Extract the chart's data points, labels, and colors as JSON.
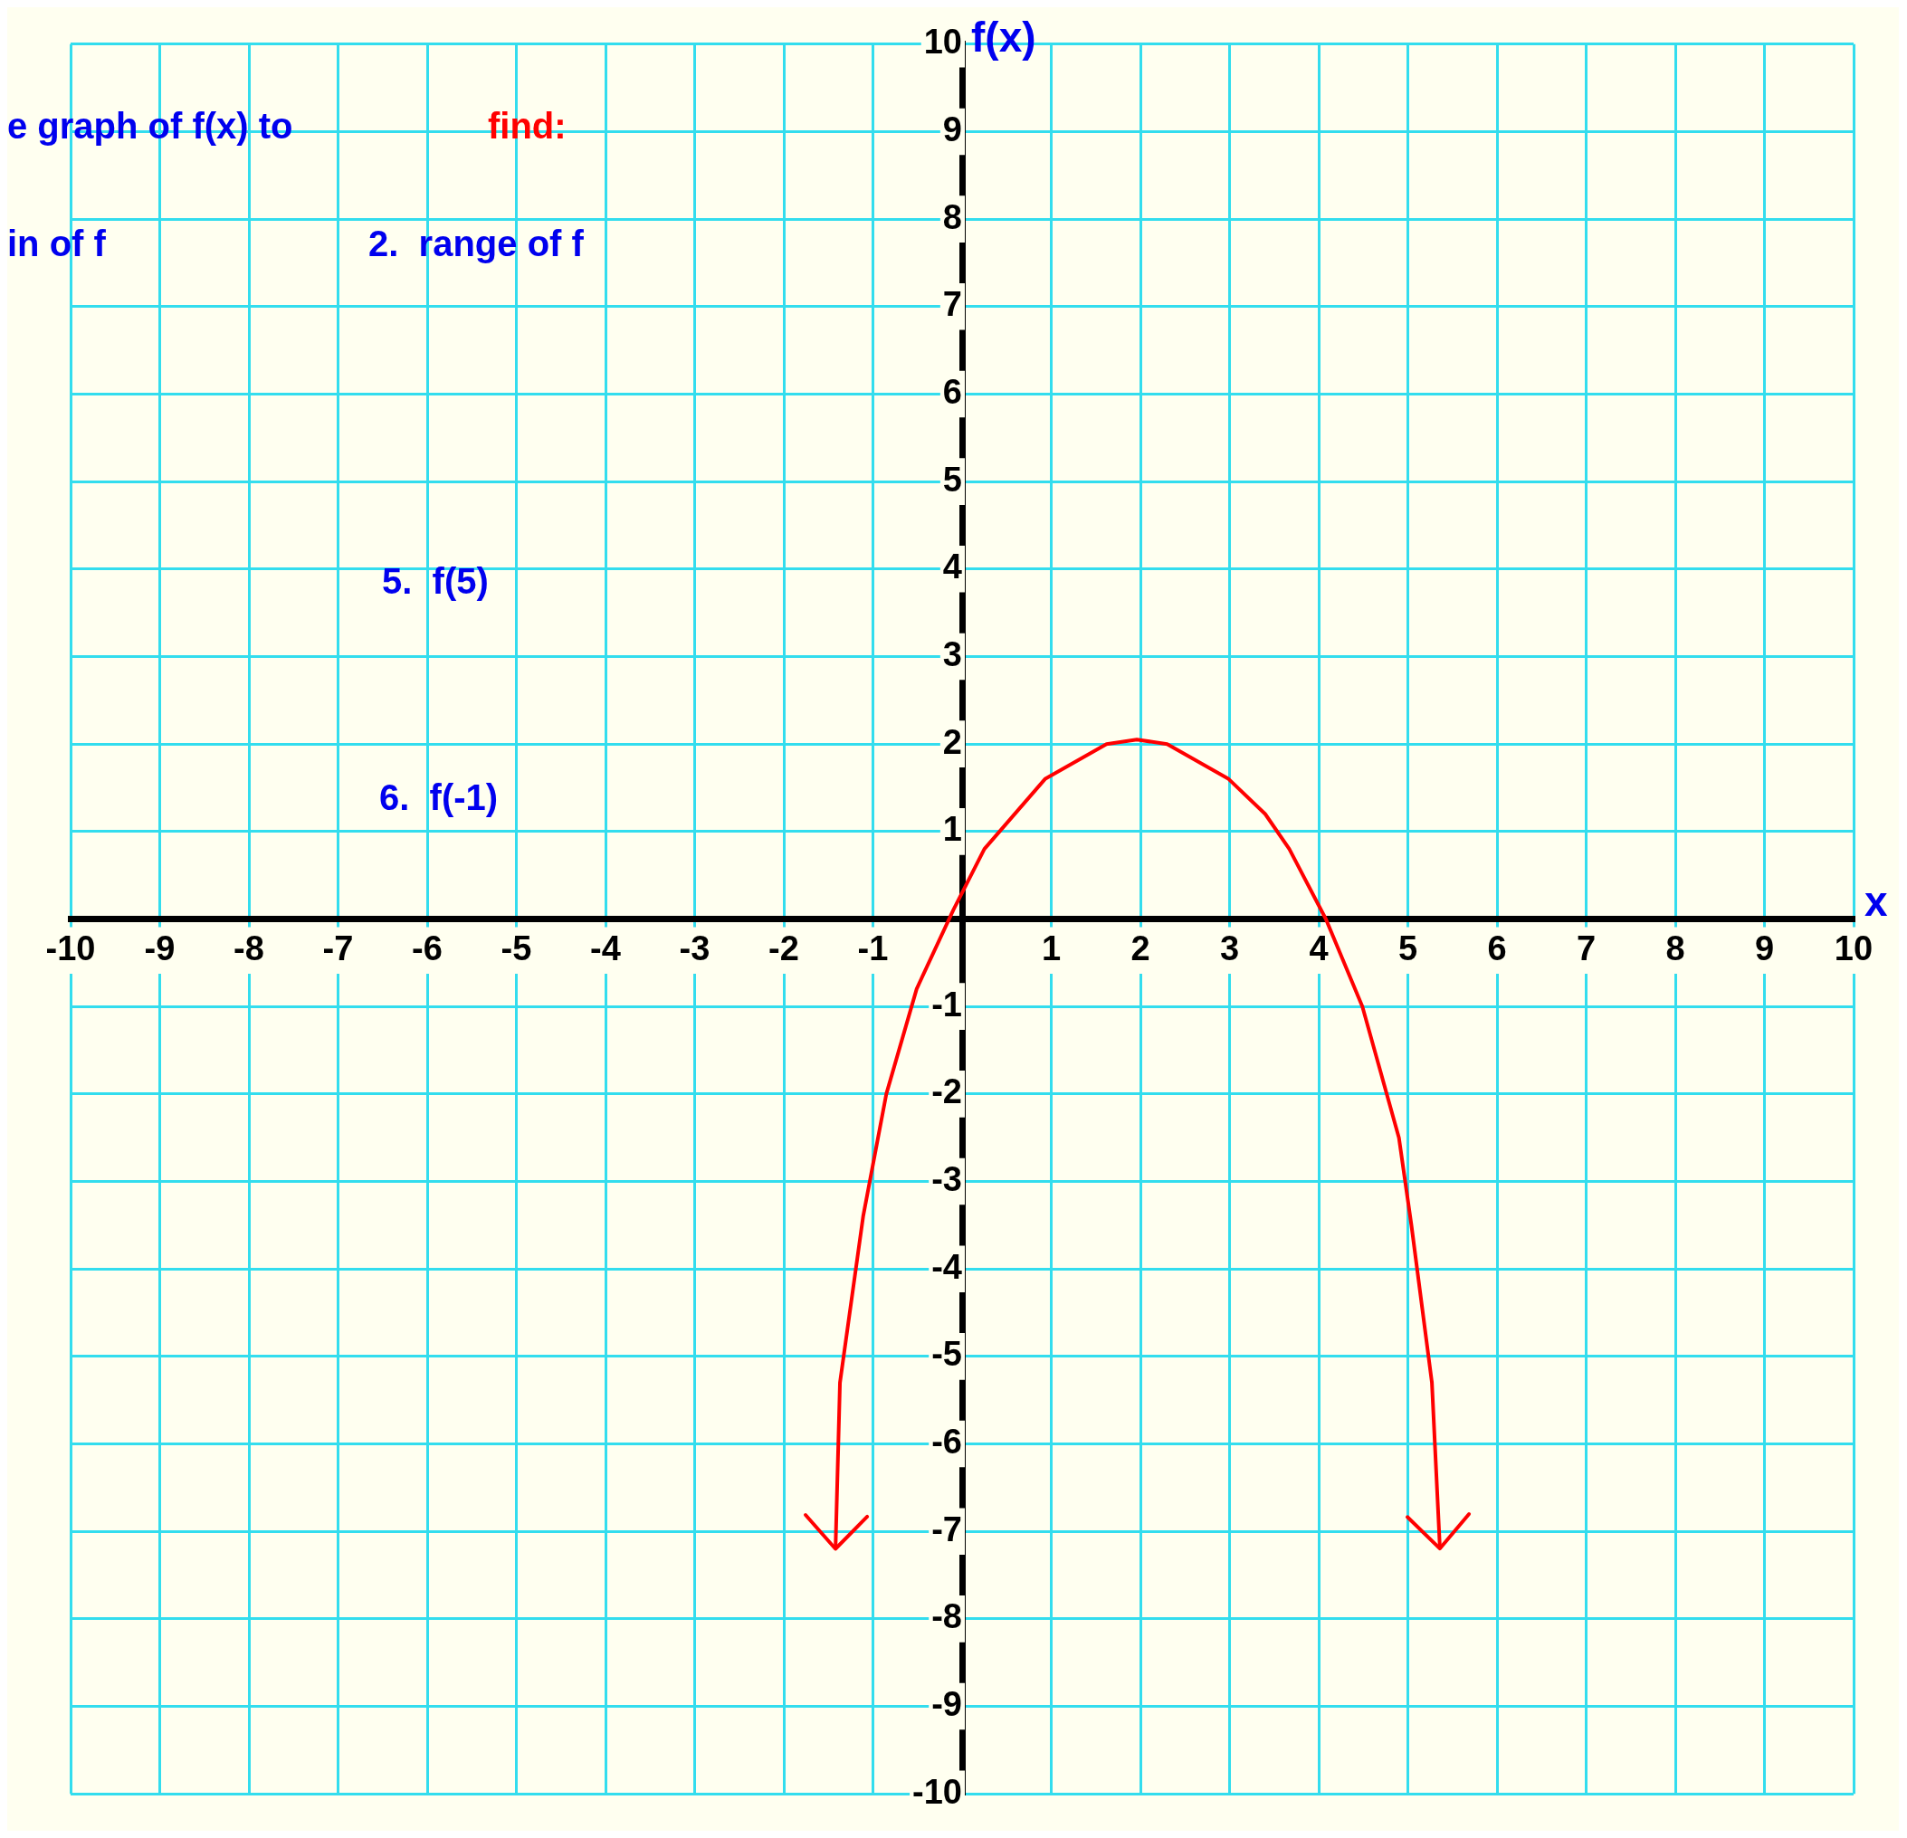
{
  "chart_data": {
    "type": "line",
    "xlabel": "x",
    "ylabel": "f(x)",
    "annotations": [
      "e graph of f(x) to",
      "find:",
      "in of f",
      "2.  range of f",
      "5.  f(5)",
      "6.  f(-1)"
    ],
    "xlim": [
      -10,
      10
    ],
    "ylim": [
      -10,
      10
    ],
    "xticks": [
      -10,
      -9,
      -8,
      -7,
      -6,
      -5,
      -4,
      -3,
      -2,
      -1,
      {
        "value": 0,
        "label": null
      },
      1,
      2,
      3,
      4,
      5,
      6,
      7,
      8,
      9,
      10
    ],
    "yticks": [
      -10,
      -9,
      -8,
      -7,
      -6,
      -5,
      -4,
      -3,
      -2,
      -1,
      {
        "value": 0,
        "label": null
      },
      1,
      2,
      3,
      4,
      5,
      6,
      7,
      8,
      9,
      10
    ],
    "grid": true,
    "legend": false,
    "marker": "none",
    "line_style": "solid",
    "series": [
      {
        "color": "#ff0000",
        "x": [
          -1.42,
          -1.37,
          -1.11,
          -0.85,
          -0.51,
          -0.1,
          0.25,
          0.93,
          1.62,
          1.96,
          2.3,
          2.99,
          3.4,
          3.67,
          4.08,
          4.49,
          4.9,
          5.04,
          5.27,
          5.36
        ],
        "values": [
          -7.2,
          -5.3,
          -3.4,
          -2.0,
          -0.8,
          0.1,
          0.8,
          1.6,
          2.0,
          2.05,
          2.0,
          1.6,
          1.2,
          0.8,
          0.0,
          -1.0,
          -2.5,
          -3.5,
          -5.3,
          -7.2
        ]
      }
    ]
  }
}
